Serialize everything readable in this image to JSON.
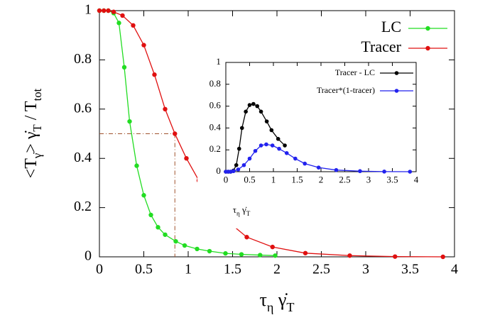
{
  "chart_data": [
    {
      "type": "line",
      "xlabel": [
        {
          "text": "τ"
        },
        {
          "text": "η",
          "sub": true
        },
        {
          "text": " γ̇"
        },
        {
          "text": "T",
          "sub": true
        }
      ],
      "ylabel": [
        {
          "text": "<T"
        },
        {
          "text": "γ̇",
          "sub": true
        },
        {
          "text": "> γ̇"
        },
        {
          "text": "T",
          "sub": true
        },
        {
          "text": " / T"
        },
        {
          "text": "tot",
          "sub": true
        }
      ],
      "xlim": [
        0,
        4
      ],
      "ylim": [
        0,
        1
      ],
      "xticks": [
        0,
        0.5,
        1,
        1.5,
        2,
        2.5,
        3,
        3.5,
        4
      ],
      "yticks": [
        0,
        0.2,
        0.4,
        0.6,
        0.8,
        1
      ],
      "legend": "upper right",
      "guide": {
        "x": 0.85,
        "y": 0.5,
        "color": "#a0522d"
      },
      "series": [
        {
          "name": "LC",
          "color": "#22dd22",
          "x": [
            0,
            0.05,
            0.1,
            0.16,
            0.22,
            0.28,
            0.34,
            0.42,
            0.5,
            0.58,
            0.66,
            0.74,
            0.86,
            0.96,
            1.1,
            1.24,
            1.42,
            1.6,
            1.81,
            1.98
          ],
          "values": [
            1,
            1,
            1,
            0.99,
            0.95,
            0.77,
            0.55,
            0.37,
            0.25,
            0.17,
            0.12,
            0.09,
            0.063,
            0.046,
            0.032,
            0.023,
            0.014,
            0.01,
            0.007,
            0.005
          ]
        },
        {
          "name": "Tracer",
          "color": "#e01010",
          "x": [
            0,
            0.05,
            0.1,
            0.16,
            0.26,
            0.38,
            0.5,
            0.62,
            0.74,
            0.85,
            0.98,
            1.12,
            1.28,
            1.46,
            1.66,
            1.95,
            2.32,
            2.82,
            3.33,
            3.87
          ],
          "values": [
            1,
            1,
            1,
            0.995,
            0.98,
            0.94,
            0.86,
            0.74,
            0.6,
            0.5,
            0.4,
            0.31,
            0.22,
            0.14,
            0.08,
            0.04,
            0.015,
            0.005,
            0.001,
            0
          ]
        }
      ]
    },
    {
      "type": "line",
      "xlabel": [
        {
          "text": "τ"
        },
        {
          "text": "η",
          "sub": true
        },
        {
          "text": " γ̇"
        },
        {
          "text": "T",
          "sub": true
        }
      ],
      "xlim": [
        0,
        4
      ],
      "ylim": [
        0,
        1
      ],
      "xticks": [
        0,
        0.5,
        1,
        1.5,
        2,
        2.5,
        3,
        3.5,
        4
      ],
      "yticks": [
        0,
        0.2,
        0.4,
        0.6,
        0.8,
        1
      ],
      "legend": "upper right",
      "series": [
        {
          "name": "Tracer - LC",
          "color": "#000000",
          "x": [
            0,
            0.05,
            0.1,
            0.16,
            0.22,
            0.28,
            0.34,
            0.42,
            0.5,
            0.58,
            0.66,
            0.74,
            0.86,
            0.96,
            1.1,
            1.24
          ],
          "values": [
            0,
            0,
            0,
            0.01,
            0.06,
            0.21,
            0.4,
            0.55,
            0.61,
            0.62,
            0.6,
            0.55,
            0.46,
            0.38,
            0.3,
            0.24
          ]
        },
        {
          "name": "Tracer*(1-tracer)",
          "color": "#2222ee",
          "x": [
            0,
            0.05,
            0.1,
            0.16,
            0.26,
            0.38,
            0.5,
            0.62,
            0.74,
            0.85,
            0.98,
            1.12,
            1.28,
            1.46,
            1.66,
            1.95,
            2.32,
            2.82,
            3.33,
            3.87
          ],
          "values": [
            0,
            0,
            0,
            0.005,
            0.02,
            0.06,
            0.12,
            0.19,
            0.24,
            0.25,
            0.24,
            0.21,
            0.17,
            0.12,
            0.074,
            0.038,
            0.015,
            0.005,
            0.001,
            0
          ]
        }
      ]
    }
  ]
}
